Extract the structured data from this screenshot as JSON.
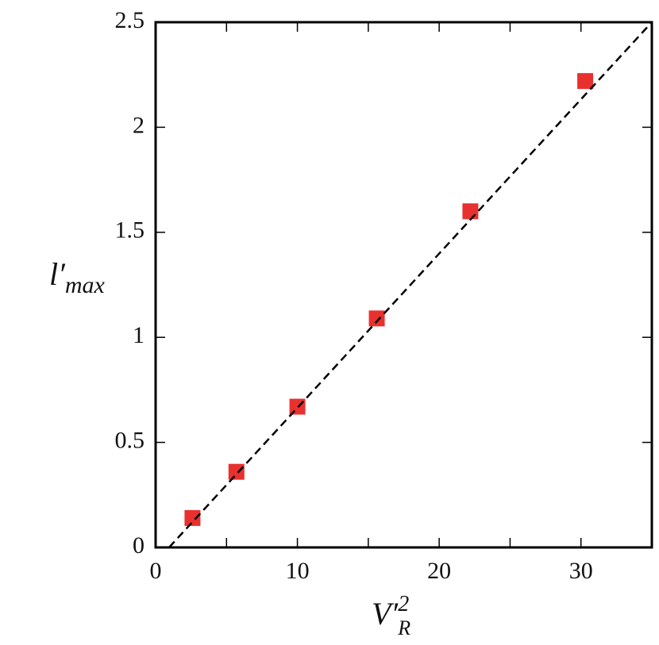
{
  "chart_data": {
    "type": "scatter",
    "xlabel": {
      "base": "V′",
      "sub": "R",
      "sup": "2"
    },
    "ylabel": {
      "base": "l′",
      "sub": "max"
    },
    "series": [
      {
        "kind": "points",
        "marker": "square",
        "color": "#e8312f",
        "x": [
          2.6,
          5.7,
          10.0,
          15.6,
          22.2,
          30.3
        ],
        "values": [
          0.14,
          0.36,
          0.67,
          1.09,
          1.6,
          2.22
        ]
      },
      {
        "kind": "line",
        "style": "dashed",
        "color": "#000000",
        "x": [
          0.95,
          35
        ],
        "values": [
          0,
          2.5
        ]
      }
    ],
    "xlim": [
      0,
      35
    ],
    "ylim": [
      0,
      2.5
    ],
    "xticks": [
      0,
      10,
      20,
      30
    ],
    "xticks_minor": [
      5,
      15,
      25,
      35
    ],
    "yticks": [
      0,
      0.5,
      1,
      1.5,
      2,
      2.5
    ]
  }
}
